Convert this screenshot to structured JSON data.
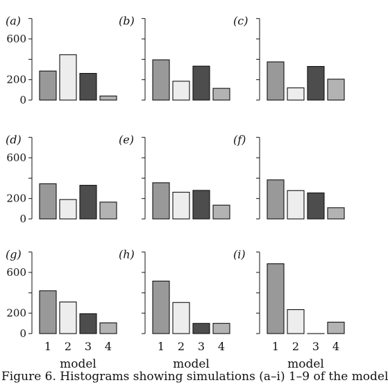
{
  "chart_data": [
    {
      "type": "bar",
      "panel_label": "(a)",
      "categories": [
        "1",
        "2",
        "3",
        "4"
      ],
      "values": [
        285,
        445,
        262,
        40
      ],
      "ylim": [
        0,
        800
      ],
      "yticks": [
        0,
        200,
        600
      ],
      "xlabel": ""
    },
    {
      "type": "bar",
      "panel_label": "(b)",
      "categories": [
        "1",
        "2",
        "3",
        "4"
      ],
      "values": [
        395,
        185,
        333,
        115
      ],
      "ylim": [
        0,
        800
      ],
      "yticks": [],
      "xlabel": ""
    },
    {
      "type": "bar",
      "panel_label": "(c)",
      "categories": [
        "1",
        "2",
        "3",
        "4"
      ],
      "values": [
        375,
        120,
        330,
        205
      ],
      "ylim": [
        0,
        800
      ],
      "yticks": [],
      "xlabel": ""
    },
    {
      "type": "bar",
      "panel_label": "(d)",
      "categories": [
        "1",
        "2",
        "3",
        "4"
      ],
      "values": [
        345,
        190,
        330,
        165
      ],
      "ylim": [
        0,
        800
      ],
      "yticks": [
        0,
        200,
        600
      ],
      "xlabel": ""
    },
    {
      "type": "bar",
      "panel_label": "(e)",
      "categories": [
        "1",
        "2",
        "3",
        "4"
      ],
      "values": [
        355,
        262,
        280,
        135
      ],
      "ylim": [
        0,
        800
      ],
      "yticks": [],
      "xlabel": ""
    },
    {
      "type": "bar",
      "panel_label": "(f)",
      "categories": [
        "1",
        "2",
        "3",
        "4"
      ],
      "values": [
        383,
        278,
        255,
        110
      ],
      "ylim": [
        0,
        800
      ],
      "yticks": [],
      "xlabel": ""
    },
    {
      "type": "bar",
      "panel_label": "(g)",
      "categories": [
        "1",
        "2",
        "3",
        "4"
      ],
      "values": [
        420,
        310,
        195,
        105
      ],
      "ylim": [
        0,
        800
      ],
      "yticks": [
        0,
        200,
        600
      ],
      "xlabel": "model",
      "xticks_shown": true
    },
    {
      "type": "bar",
      "panel_label": "(h)",
      "categories": [
        "1",
        "2",
        "3",
        "4"
      ],
      "values": [
        515,
        305,
        100,
        100
      ],
      "ylim": [
        0,
        800
      ],
      "yticks": [],
      "xlabel": "model",
      "xticks_shown": true
    },
    {
      "type": "bar",
      "panel_label": "(i)",
      "categories": [
        "1",
        "2",
        "3",
        "4"
      ],
      "values": [
        685,
        235,
        0,
        112
      ],
      "ylim": [
        0,
        800
      ],
      "yticks": [],
      "xlabel": "model",
      "xticks_shown": true
    }
  ],
  "colors": {
    "model1": "#999999",
    "model2": "#ededed",
    "model3": "#4d4d4d",
    "model4": "#b3b3b3",
    "axis": "#111111"
  },
  "caption": "Figure 6. Histograms showing simulations (a–i) 1–9 of the model"
}
